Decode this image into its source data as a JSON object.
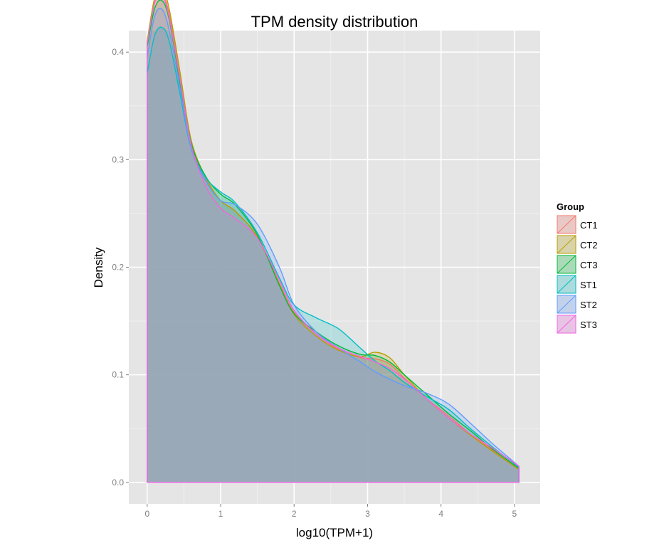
{
  "chart_data": {
    "type": "area",
    "title": "TPM density distribution",
    "xlabel": "log10(TPM+1)",
    "ylabel": "Density",
    "xlim": [
      -0.25,
      5.35
    ],
    "ylim": [
      -0.02,
      0.42
    ],
    "x_ticks": [
      0,
      1,
      2,
      3,
      4,
      5
    ],
    "y_ticks": [
      0.0,
      0.1,
      0.2,
      0.3,
      0.4
    ],
    "x_tick_labels": [
      "0",
      "1",
      "2",
      "3",
      "4",
      "5"
    ],
    "y_tick_labels": [
      "0.0",
      "0.1",
      "0.2",
      "0.3",
      "0.4"
    ],
    "grid": true,
    "legend": {
      "title": "Group",
      "placement": "right"
    },
    "series": [
      {
        "name": "CT1",
        "color": "#F8766D",
        "x": [
          0,
          0.1,
          0.2,
          0.3,
          0.45,
          0.6,
          0.8,
          1.0,
          1.2,
          1.5,
          1.8,
          2.0,
          2.3,
          2.6,
          2.9,
          3.1,
          3.3,
          3.5,
          3.8,
          4.1,
          4.4,
          4.7,
          5.06
        ],
        "y": [
          0.41,
          0.446,
          0.455,
          0.435,
          0.375,
          0.315,
          0.282,
          0.262,
          0.252,
          0.228,
          0.185,
          0.158,
          0.138,
          0.124,
          0.116,
          0.115,
          0.11,
          0.097,
          0.078,
          0.062,
          0.045,
          0.03,
          0.013
        ]
      },
      {
        "name": "CT2",
        "color": "#B79F00",
        "x": [
          0,
          0.1,
          0.2,
          0.3,
          0.45,
          0.6,
          0.8,
          1.0,
          1.2,
          1.5,
          1.8,
          2.0,
          2.3,
          2.6,
          2.9,
          3.1,
          3.3,
          3.5,
          3.8,
          4.1,
          4.4,
          4.7,
          5.06
        ],
        "y": [
          0.41,
          0.45,
          0.46,
          0.44,
          0.38,
          0.318,
          0.283,
          0.262,
          0.252,
          0.228,
          0.184,
          0.156,
          0.136,
          0.123,
          0.117,
          0.121,
          0.116,
          0.1,
          0.078,
          0.06,
          0.044,
          0.029,
          0.012
        ]
      },
      {
        "name": "CT3",
        "color": "#00BA38",
        "x": [
          0,
          0.1,
          0.2,
          0.3,
          0.45,
          0.6,
          0.8,
          1.0,
          1.2,
          1.5,
          1.8,
          2.0,
          2.3,
          2.6,
          2.9,
          3.1,
          3.3,
          3.5,
          3.8,
          4.1,
          4.4,
          4.7,
          5.06
        ],
        "y": [
          0.405,
          0.44,
          0.448,
          0.43,
          0.37,
          0.315,
          0.284,
          0.268,
          0.258,
          0.23,
          0.183,
          0.157,
          0.14,
          0.127,
          0.119,
          0.118,
          0.112,
          0.1,
          0.082,
          0.064,
          0.048,
          0.031,
          0.013
        ]
      },
      {
        "name": "ST1",
        "color": "#00BFC4",
        "x": [
          0,
          0.1,
          0.2,
          0.3,
          0.45,
          0.6,
          0.8,
          1.0,
          1.2,
          1.5,
          1.8,
          2.0,
          2.3,
          2.6,
          2.9,
          3.1,
          3.3,
          3.5,
          3.8,
          4.1,
          4.4,
          4.7,
          5.06
        ],
        "y": [
          0.38,
          0.415,
          0.423,
          0.41,
          0.36,
          0.31,
          0.283,
          0.27,
          0.26,
          0.232,
          0.19,
          0.165,
          0.153,
          0.143,
          0.125,
          0.113,
          0.104,
          0.093,
          0.08,
          0.068,
          0.05,
          0.033,
          0.014
        ]
      },
      {
        "name": "ST2",
        "color": "#619CFF",
        "x": [
          0,
          0.1,
          0.2,
          0.3,
          0.45,
          0.6,
          0.8,
          1.0,
          1.2,
          1.5,
          1.8,
          2.0,
          2.3,
          2.6,
          2.9,
          3.1,
          3.3,
          3.5,
          3.8,
          4.1,
          4.4,
          4.7,
          5.06
        ],
        "y": [
          0.395,
          0.433,
          0.44,
          0.42,
          0.365,
          0.31,
          0.28,
          0.262,
          0.258,
          0.24,
          0.2,
          0.165,
          0.14,
          0.125,
          0.112,
          0.103,
          0.096,
          0.09,
          0.083,
          0.073,
          0.055,
          0.036,
          0.015
        ]
      },
      {
        "name": "ST3",
        "color": "#F564E3",
        "x": [
          0,
          0.1,
          0.2,
          0.3,
          0.45,
          0.6,
          0.8,
          1.0,
          1.2,
          1.5,
          1.8,
          2.0,
          2.3,
          2.6,
          2.9,
          3.1,
          3.3,
          3.5,
          3.8,
          4.1,
          4.4,
          4.7,
          5.06
        ],
        "y": [
          0.408,
          0.445,
          0.452,
          0.432,
          0.373,
          0.313,
          0.275,
          0.255,
          0.245,
          0.227,
          0.188,
          0.16,
          0.138,
          0.125,
          0.117,
          0.112,
          0.106,
          0.096,
          0.078,
          0.06,
          0.045,
          0.032,
          0.015
        ]
      }
    ],
    "fill_color": "#9aa9b8"
  }
}
